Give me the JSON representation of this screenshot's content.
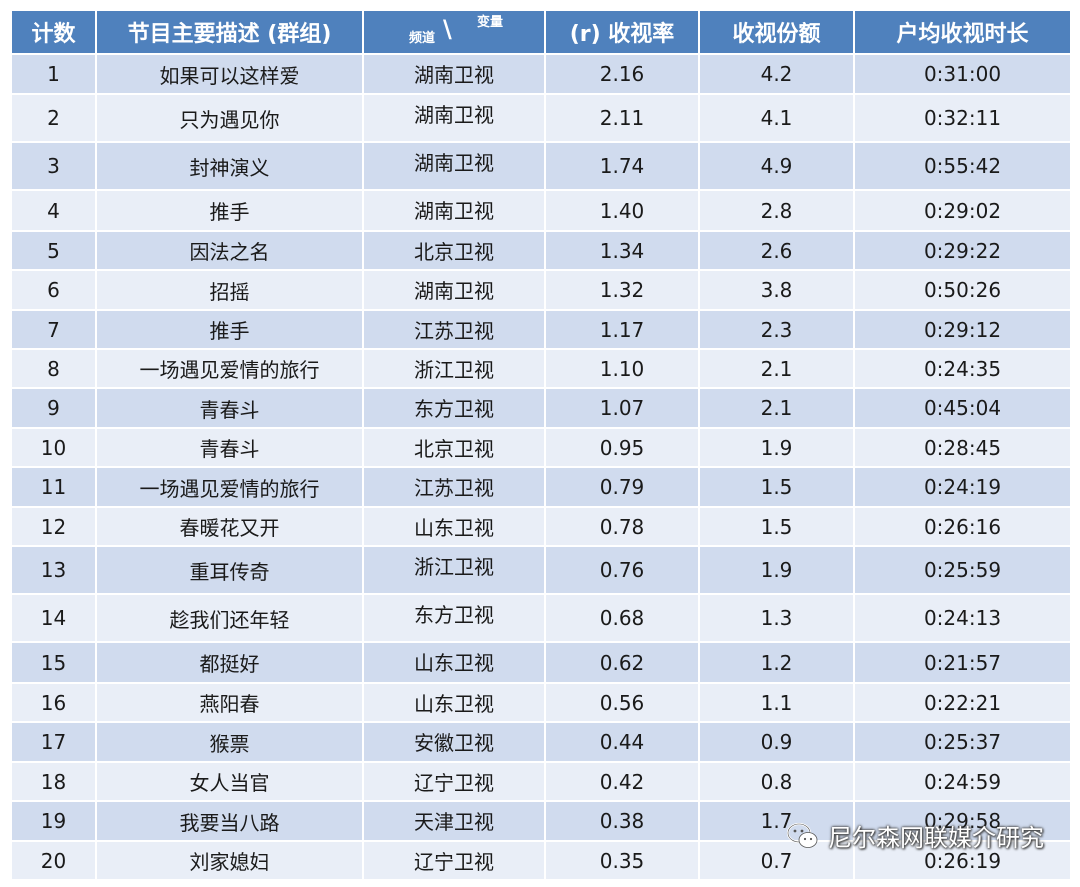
{
  "table": {
    "headers": {
      "count": "计数",
      "program": "节目主要描述 (群组)",
      "channel_label": "频道",
      "variable_label": "变量",
      "rating": "(r) 收视率",
      "share": "收视份额",
      "avg_time": "户均收视时长"
    },
    "rows": [
      {
        "count": "1",
        "program": "如果可以这样爱",
        "channel": "湖南卫视",
        "rating": "2.16",
        "share": "4.2",
        "avg_time": "0:31:00",
        "h": 40
      },
      {
        "count": "2",
        "program": "只为遇见你",
        "channel": "湖南卫视",
        "rating": "2.11",
        "share": "4.1",
        "avg_time": "0:32:11",
        "h": 48
      },
      {
        "count": "3",
        "program": "封神演义",
        "channel": "湖南卫视",
        "rating": "1.74",
        "share": "4.9",
        "avg_time": "0:55:42",
        "h": 48
      },
      {
        "count": "4",
        "program": "推手",
        "channel": "湖南卫视",
        "rating": "1.40",
        "share": "2.8",
        "avg_time": "0:29:02",
        "h": 41
      },
      {
        "count": "5",
        "program": "因法之名",
        "channel": "北京卫视",
        "rating": "1.34",
        "share": "2.6",
        "avg_time": "0:29:22",
        "h": 39
      },
      {
        "count": "6",
        "program": "招摇",
        "channel": "湖南卫视",
        "rating": "1.32",
        "share": "3.8",
        "avg_time": "0:50:26",
        "h": 40
      },
      {
        "count": "7",
        "program": "推手",
        "channel": "江苏卫视",
        "rating": "1.17",
        "share": "2.3",
        "avg_time": "0:29:12",
        "h": 39
      },
      {
        "count": "8",
        "program": "一场遇见爱情的旅行",
        "channel": "浙江卫视",
        "rating": "1.10",
        "share": "2.1",
        "avg_time": "0:24:35",
        "h": 39
      },
      {
        "count": "9",
        "program": "青春斗",
        "channel": "东方卫视",
        "rating": "1.07",
        "share": "2.1",
        "avg_time": "0:45:04",
        "h": 40
      },
      {
        "count": "10",
        "program": "青春斗",
        "channel": "北京卫视",
        "rating": "0.95",
        "share": "1.9",
        "avg_time": "0:28:45",
        "h": 39
      },
      {
        "count": "11",
        "program": "一场遇见爱情的旅行",
        "channel": "江苏卫视",
        "rating": "0.79",
        "share": "1.5",
        "avg_time": "0:24:19",
        "h": 40
      },
      {
        "count": "12",
        "program": "春暖花又开",
        "channel": "山东卫视",
        "rating": "0.78",
        "share": "1.5",
        "avg_time": "0:26:16",
        "h": 39
      },
      {
        "count": "13",
        "program": "重耳传奇",
        "channel": "浙江卫视",
        "rating": "0.76",
        "share": "1.9",
        "avg_time": "0:25:59",
        "h": 48
      },
      {
        "count": "14",
        "program": "趁我们还年轻",
        "channel": "东方卫视",
        "rating": "0.68",
        "share": "1.3",
        "avg_time": "0:24:13",
        "h": 48
      },
      {
        "count": "15",
        "program": "都挺好",
        "channel": "山东卫视",
        "rating": "0.62",
        "share": "1.2",
        "avg_time": "0:21:57",
        "h": 41
      },
      {
        "count": "16",
        "program": "燕阳春",
        "channel": "山东卫视",
        "rating": "0.56",
        "share": "1.1",
        "avg_time": "0:22:21",
        "h": 39
      },
      {
        "count": "17",
        "program": "猴票",
        "channel": "安徽卫视",
        "rating": "0.44",
        "share": "0.9",
        "avg_time": "0:25:37",
        "h": 40
      },
      {
        "count": "18",
        "program": "女人当官",
        "channel": "辽宁卫视",
        "rating": "0.42",
        "share": "0.8",
        "avg_time": "0:24:59",
        "h": 39
      },
      {
        "count": "19",
        "program": "我要当八路",
        "channel": "天津卫视",
        "rating": "0.38",
        "share": "1.7",
        "avg_time": "0:29:58",
        "h": 40
      },
      {
        "count": "20",
        "program": "刘家媳妇",
        "channel": "辽宁卫视",
        "rating": "0.35",
        "share": "0.7",
        "avg_time": "0:26:19",
        "h": 39
      }
    ]
  },
  "watermark": {
    "icon": "wechat-icon",
    "text": "尼尔森网联媒介研究"
  }
}
